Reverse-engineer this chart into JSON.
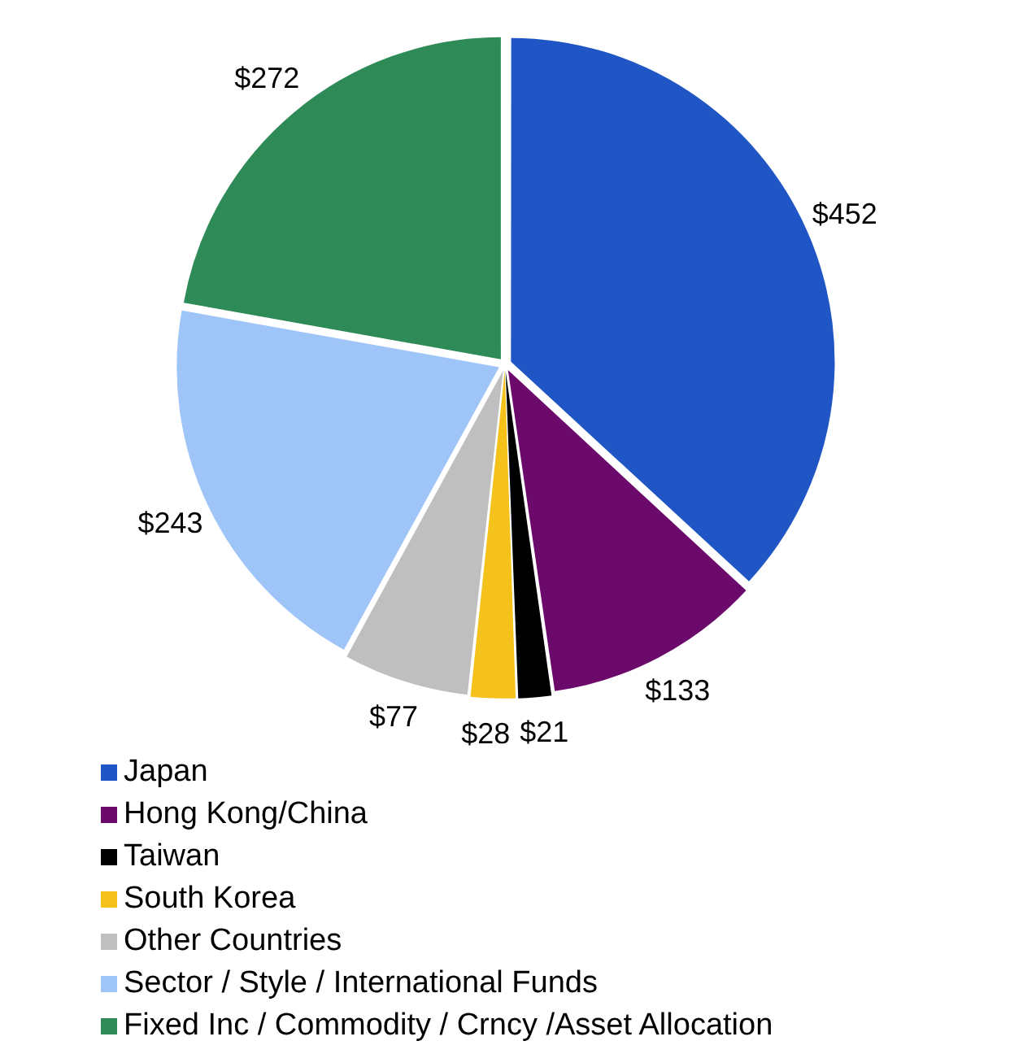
{
  "chart_data": {
    "type": "pie",
    "categories": [
      "Japan",
      "Hong Kong/China",
      "Taiwan",
      "South Korea",
      "Other Countries",
      "Sector / Style / International Funds",
      "Fixed Inc / Commodity / Crncy /Asset Allocation"
    ],
    "values": [
      452,
      133,
      21,
      28,
      77,
      243,
      272
    ],
    "colors": [
      "#1f55c4",
      "#6b0a6b",
      "#000000",
      "#f5c21b",
      "#bfbfbf",
      "#9fc5f8",
      "#2e8b57"
    ],
    "value_labels": [
      "$452",
      "$133",
      "$21",
      "$28",
      "$77",
      "$243",
      "$272"
    ],
    "legend": "bottom"
  }
}
